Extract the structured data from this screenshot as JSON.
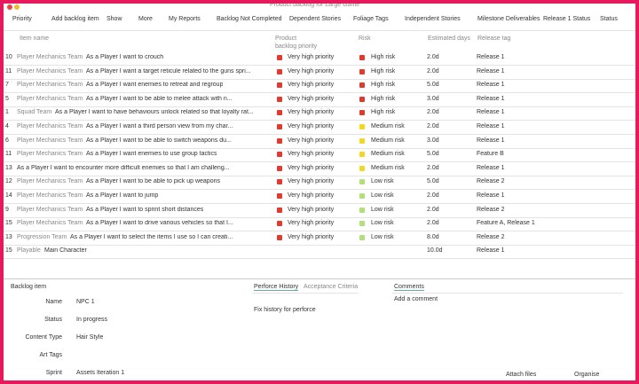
{
  "window": {
    "title": "Product backlog for Large Game"
  },
  "toolbar": [
    "Priority",
    "Add backlog item",
    "Show",
    "More",
    "My Reports",
    "Backlog Not Completed",
    "Dependent Stories",
    "Foliage Tags",
    "Independent Stories",
    "Milestone Deliverables",
    "Release 1 Status",
    "Status"
  ],
  "table": {
    "columns": [
      "Item name",
      "Product backlog priority",
      "Risk",
      "Estimated days",
      "Release tag"
    ],
    "rows": [
      {
        "id": "10",
        "team": "Player Mechanics Team",
        "story": "As a Player I want to crouch",
        "priority": {
          "label": "Very high priority",
          "color": "#e23a2f"
        },
        "risk": {
          "label": "High risk",
          "color": "#e23a2f"
        },
        "days": "2.0d",
        "release": "Release 1"
      },
      {
        "id": "11",
        "team": "Player Mechanics Team",
        "story": "As a Player I want a target reticule related to the guns spri...",
        "priority": {
          "label": "Very high priority",
          "color": "#e23a2f"
        },
        "risk": {
          "label": "High risk",
          "color": "#e23a2f"
        },
        "days": "2.0d",
        "release": "Release 1"
      },
      {
        "id": "7",
        "team": "Player Mechanics Team",
        "story": "As a Player I want enemies to retreat and regroup",
        "priority": {
          "label": "Very high priority",
          "color": "#e23a2f"
        },
        "risk": {
          "label": "High risk",
          "color": "#e23a2f"
        },
        "days": "5.0d",
        "release": "Release 1"
      },
      {
        "id": "5",
        "team": "Player Mechanics Team",
        "story": "As a Player I want to be able to melee attack with n...",
        "priority": {
          "label": "Very high priority",
          "color": "#e23a2f"
        },
        "risk": {
          "label": "High risk",
          "color": "#e23a2f"
        },
        "days": "3.0d",
        "release": "Release 1"
      },
      {
        "id": "1",
        "team": "Squad Team",
        "story": "As a Player I want to have behaviours unlock related so that loyalty rat...",
        "priority": {
          "label": "Very high priority",
          "color": "#e23a2f"
        },
        "risk": {
          "label": "High risk",
          "color": "#e23a2f"
        },
        "days": "2.0d",
        "release": "Release 1"
      },
      {
        "id": "4",
        "team": "Player Mechanics Team",
        "story": "As a Player I want a third person view from my char...",
        "priority": {
          "label": "Very high priority",
          "color": "#e23a2f"
        },
        "risk": {
          "label": "Medium risk",
          "color": "#f2d820"
        },
        "days": "2.0d",
        "release": "Release 1"
      },
      {
        "id": "6",
        "team": "Player Mechanics Team",
        "story": "As a Player I want to be able to switch weapons du...",
        "priority": {
          "label": "Very high priority",
          "color": "#e23a2f"
        },
        "risk": {
          "label": "Medium risk",
          "color": "#f2d820"
        },
        "days": "3.0d",
        "release": "Release 1"
      },
      {
        "id": "11",
        "team": "Player Mechanics Team",
        "story": "As a Player I want enemies to use group tactics",
        "priority": {
          "label": "Very high priority",
          "color": "#e23a2f"
        },
        "risk": {
          "label": "Medium risk",
          "color": "#f2d820"
        },
        "days": "5.0d",
        "release": "Feature B"
      },
      {
        "id": "13",
        "story": "As a Player I want to encounter more difficult enemies so that I am challeng...",
        "priority": {
          "label": "Very high priority",
          "color": "#e23a2f"
        },
        "risk": {
          "label": "Medium risk",
          "color": "#f2d820"
        },
        "days": "2.0d",
        "release": "Release 1"
      },
      {
        "id": "12",
        "team": "Player Mechanics Team",
        "story": "As a Player I want to be able to pick up weapons",
        "priority": {
          "label": "Very high priority",
          "color": "#e23a2f"
        },
        "risk": {
          "label": "Low risk",
          "color": "#b4e07a"
        },
        "days": "5.0d",
        "release": "Release 2"
      },
      {
        "id": "14",
        "team": "Player Mechanics Team",
        "story": "As a Player I want to jump",
        "priority": {
          "label": "Very high priority",
          "color": "#e23a2f"
        },
        "risk": {
          "label": "Low risk",
          "color": "#b4e07a"
        },
        "days": "2.0d",
        "release": "Release 1"
      },
      {
        "id": "9",
        "team": "Player Mechanics Team",
        "story": "As a Player I want to sprint short distances",
        "priority": {
          "label": "Very high priority",
          "color": "#e23a2f"
        },
        "risk": {
          "label": "Low risk",
          "color": "#b4e07a"
        },
        "days": "2.0d",
        "release": "Release 2"
      },
      {
        "id": "15",
        "team": "Player Mechanics Team",
        "story": "As a Player I want to drive various vehicles so that I...",
        "priority": {
          "label": "Very high priority",
          "color": "#e23a2f"
        },
        "risk": {
          "label": "Low risk",
          "color": "#b4e07a"
        },
        "days": "2.0d",
        "release": "Feature A, Release 1"
      },
      {
        "id": "13",
        "team": "Progression Team",
        "story": "As a Player I want to select the items I use so I can creati...",
        "priority": {
          "label": "Very high priority",
          "color": "#e23a2f"
        },
        "risk": {
          "label": "Low risk",
          "color": "#b4e07a"
        },
        "days": "8.0d",
        "release": "Release 2"
      },
      {
        "id": "15",
        "team": "Playable",
        "story": "Main Character",
        "days": "10.0d",
        "release": "Release 1"
      }
    ]
  },
  "detail": {
    "title": "Backlog item",
    "fields": [
      {
        "label": "Name",
        "value": "NPC 1"
      },
      {
        "label": "Status",
        "value": "In progress"
      },
      {
        "label": "Content Type",
        "value": "Hair Style"
      },
      {
        "label": "Art Tags"
      },
      {
        "label": "Sprint",
        "value": "Assets Iteration 1"
      }
    ],
    "tabs": [
      "Perforce History",
      "Acceptance Criteria"
    ],
    "history": "Fix history for perforce",
    "comments": {
      "title": "Comments",
      "add": "Add a comment"
    },
    "buttons": [
      "Attach files",
      "Organise"
    ]
  }
}
